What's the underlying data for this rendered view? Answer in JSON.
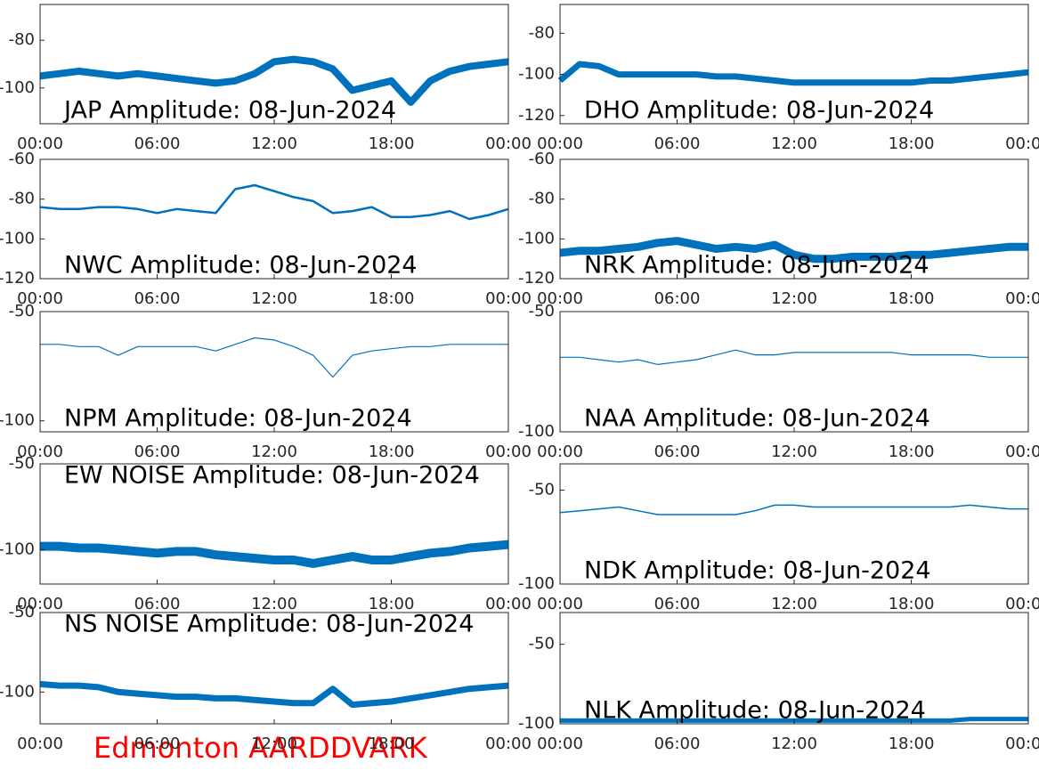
{
  "chart_data": [
    {
      "type": "line",
      "title": "JAP Amplitude: 08-Jun-2024",
      "color": "#0072bd",
      "xlim": [
        0,
        24
      ],
      "ylim": [
        -115,
        -65
      ],
      "xticks": [
        {
          "value": 0,
          "label": "00:00"
        },
        {
          "value": 6,
          "label": "06:00"
        },
        {
          "value": 12,
          "label": "12:00"
        },
        {
          "value": 18,
          "label": "18:00"
        },
        {
          "value": 24,
          "label": "00:00"
        }
      ],
      "yticks": [
        -80,
        -100
      ],
      "x": [
        0,
        1,
        2,
        3,
        4,
        5,
        6,
        7,
        8,
        9,
        10,
        11,
        12,
        13,
        14,
        15,
        16,
        17,
        18,
        19,
        20,
        21,
        22,
        23,
        24
      ],
      "values": [
        -95,
        -94,
        -93,
        -94,
        -95,
        -94,
        -95,
        -96,
        -97,
        -98,
        -97,
        -94,
        -89,
        -88,
        -89,
        -92,
        -101,
        -99,
        -97,
        -106,
        -97,
        -93,
        -91,
        -90,
        -89
      ]
    },
    {
      "type": "line",
      "title": "DHO Amplitude: 08-Jun-2024",
      "color": "#0072bd",
      "xlim": [
        0,
        24
      ],
      "ylim": [
        -124,
        -66
      ],
      "xticks": [
        {
          "value": 0,
          "label": "00:00"
        },
        {
          "value": 6,
          "label": "06:00"
        },
        {
          "value": 12,
          "label": "12:00"
        },
        {
          "value": 18,
          "label": "18:00"
        },
        {
          "value": 24,
          "label": "00:00"
        }
      ],
      "yticks": [
        -80,
        -100,
        -120
      ],
      "x": [
        0,
        1,
        2,
        3,
        4,
        5,
        6,
        7,
        8,
        9,
        10,
        11,
        12,
        13,
        14,
        15,
        16,
        17,
        18,
        19,
        20,
        21,
        22,
        23,
        24
      ],
      "values": [
        -103,
        -95,
        -96,
        -100,
        -100,
        -100,
        -100,
        -100,
        -101,
        -101,
        -102,
        -103,
        -104,
        -104,
        -104,
        -104,
        -104,
        -104,
        -104,
        -103,
        -103,
        -102,
        -101,
        -100,
        -99
      ]
    },
    {
      "type": "line",
      "title": "NWC Amplitude: 08-Jun-2024",
      "color": "#0072bd",
      "xlim": [
        0,
        24
      ],
      "ylim": [
        -120,
        -60
      ],
      "xticks": [
        {
          "value": 0,
          "label": "00:00"
        },
        {
          "value": 6,
          "label": "06:00"
        },
        {
          "value": 12,
          "label": "12:00"
        },
        {
          "value": 18,
          "label": "18:00"
        },
        {
          "value": 24,
          "label": "00:00"
        }
      ],
      "yticks": [
        -60,
        -80,
        -100,
        -120
      ],
      "x": [
        0,
        1,
        2,
        3,
        4,
        5,
        6,
        7,
        8,
        9,
        10,
        11,
        12,
        13,
        14,
        15,
        16,
        17,
        18,
        19,
        20,
        21,
        22,
        23,
        24
      ],
      "values": [
        -84,
        -85,
        -85,
        -84,
        -84,
        -85,
        -87,
        -85,
        -86,
        -87,
        -75,
        -73,
        -76,
        -79,
        -81,
        -87,
        -86,
        -84,
        -89,
        -89,
        -88,
        -86,
        -90,
        -88,
        -85
      ]
    },
    {
      "type": "line",
      "title": "NRK Amplitude: 08-Jun-2024",
      "color": "#0072bd",
      "xlim": [
        0,
        24
      ],
      "ylim": [
        -120,
        -60
      ],
      "xticks": [
        {
          "value": 0,
          "label": "00:00"
        },
        {
          "value": 6,
          "label": "06:00"
        },
        {
          "value": 12,
          "label": "12:00"
        },
        {
          "value": 18,
          "label": "18:00"
        },
        {
          "value": 24,
          "label": "00:00"
        }
      ],
      "yticks": [
        -60,
        -80,
        -100,
        -120
      ],
      "x": [
        0,
        1,
        2,
        3,
        4,
        5,
        6,
        7,
        8,
        9,
        10,
        11,
        12,
        13,
        14,
        15,
        16,
        17,
        18,
        19,
        20,
        21,
        22,
        23,
        24
      ],
      "values": [
        -107,
        -106,
        -106,
        -105,
        -104,
        -102,
        -101,
        -103,
        -105,
        -104,
        -105,
        -103,
        -108,
        -110,
        -110,
        -109,
        -109,
        -109,
        -108,
        -108,
        -107,
        -106,
        -105,
        -104,
        -104
      ]
    },
    {
      "type": "line",
      "title": "NPM Amplitude: 08-Jun-2024",
      "color": "#0072bd",
      "xlim": [
        0,
        24
      ],
      "ylim": [
        -105,
        -50
      ],
      "xticks": [
        {
          "value": 0,
          "label": "00:00"
        },
        {
          "value": 6,
          "label": "06:00"
        },
        {
          "value": 12,
          "label": "12:00"
        },
        {
          "value": 18,
          "label": "18:00"
        },
        {
          "value": 24,
          "label": "00:00"
        }
      ],
      "yticks": [
        -50,
        -100
      ],
      "x": [
        0,
        1,
        2,
        3,
        4,
        5,
        6,
        7,
        8,
        9,
        10,
        11,
        12,
        13,
        14,
        15,
        16,
        17,
        18,
        19,
        20,
        21,
        22,
        23,
        24
      ],
      "values": [
        -65,
        -65,
        -66,
        -66,
        -70,
        -66,
        -66,
        -66,
        -66,
        -68,
        -65,
        -62,
        -63,
        -66,
        -70,
        -80,
        -70,
        -68,
        -67,
        -66,
        -66,
        -65,
        -65,
        -65,
        -65
      ]
    },
    {
      "type": "line",
      "title": "NAA Amplitude: 08-Jun-2024",
      "color": "#0072bd",
      "xlim": [
        0,
        24
      ],
      "ylim": [
        -100,
        -50
      ],
      "xticks": [
        {
          "value": 0,
          "label": "00:00"
        },
        {
          "value": 6,
          "label": "06:00"
        },
        {
          "value": 12,
          "label": "12:00"
        },
        {
          "value": 18,
          "label": "18:00"
        },
        {
          "value": 24,
          "label": "00:00"
        }
      ],
      "yticks": [
        -50,
        -100
      ],
      "x": [
        0,
        1,
        2,
        3,
        4,
        5,
        6,
        7,
        8,
        9,
        10,
        11,
        12,
        13,
        14,
        15,
        16,
        17,
        18,
        19,
        20,
        21,
        22,
        23,
        24
      ],
      "values": [
        -69,
        -69,
        -70,
        -71,
        -70,
        -72,
        -71,
        -70,
        -68,
        -66,
        -68,
        -68,
        -67,
        -67,
        -67,
        -67,
        -67,
        -67,
        -68,
        -68,
        -68,
        -68,
        -69,
        -69,
        -69
      ]
    },
    {
      "type": "line",
      "title": "EW NOISE Amplitude: 08-Jun-2024",
      "color": "#0072bd",
      "xlim": [
        0,
        24
      ],
      "ylim": [
        -120,
        -50
      ],
      "xticks": [
        {
          "value": 0,
          "label": "00:00"
        },
        {
          "value": 6,
          "label": "06:00"
        },
        {
          "value": 12,
          "label": "12:00"
        },
        {
          "value": 18,
          "label": "18:00"
        },
        {
          "value": 24,
          "label": "00:00"
        }
      ],
      "yticks": [
        -50,
        -100
      ],
      "x": [
        0,
        1,
        2,
        3,
        4,
        5,
        6,
        7,
        8,
        9,
        10,
        11,
        12,
        13,
        14,
        15,
        16,
        17,
        18,
        19,
        20,
        21,
        22,
        23,
        24
      ],
      "values": [
        -98,
        -98,
        -99,
        -99,
        -100,
        -101,
        -102,
        -101,
        -101,
        -103,
        -104,
        -105,
        -106,
        -106,
        -108,
        -106,
        -104,
        -106,
        -106,
        -104,
        -102,
        -101,
        -99,
        -98,
        -97
      ]
    },
    {
      "type": "line",
      "title": "NDK Amplitude: 08-Jun-2024",
      "color": "#0072bd",
      "xlim": [
        0,
        24
      ],
      "ylim": [
        -100,
        -36
      ],
      "xticks": [
        {
          "value": 0,
          "label": "00:00"
        },
        {
          "value": 6,
          "label": "06:00"
        },
        {
          "value": 12,
          "label": "12:00"
        },
        {
          "value": 18,
          "label": "18:00"
        },
        {
          "value": 24,
          "label": "00:00"
        }
      ],
      "yticks": [
        -50,
        -100
      ],
      "x": [
        0,
        1,
        2,
        3,
        4,
        5,
        6,
        7,
        8,
        9,
        10,
        11,
        12,
        13,
        14,
        15,
        16,
        17,
        18,
        19,
        20,
        21,
        22,
        23,
        24
      ],
      "values": [
        -62,
        -61,
        -60,
        -59,
        -61,
        -63,
        -63,
        -63,
        -63,
        -63,
        -61,
        -58,
        -58,
        -59,
        -59,
        -59,
        -59,
        -59,
        -59,
        -59,
        -59,
        -58,
        -59,
        -60,
        -60
      ]
    },
    {
      "type": "line",
      "title": "NS NOISE Amplitude: 08-Jun-2024",
      "color": "#0072bd",
      "xlim": [
        0,
        24
      ],
      "ylim": [
        -120,
        -50
      ],
      "xticks": [
        {
          "value": 0,
          "label": "00:00"
        },
        {
          "value": 6,
          "label": "06:00"
        },
        {
          "value": 12,
          "label": "12:00"
        },
        {
          "value": 18,
          "label": "18:00"
        },
        {
          "value": 24,
          "label": "00:00"
        }
      ],
      "yticks": [
        -50,
        -100
      ],
      "x": [
        0,
        1,
        2,
        3,
        4,
        5,
        6,
        7,
        8,
        9,
        10,
        11,
        12,
        13,
        14,
        15,
        16,
        17,
        18,
        19,
        20,
        21,
        22,
        23,
        24
      ],
      "values": [
        -95,
        -96,
        -96,
        -97,
        -100,
        -101,
        -102,
        -103,
        -103,
        -104,
        -104,
        -105,
        -106,
        -107,
        -107,
        -98,
        -108,
        -107,
        -106,
        -104,
        -102,
        -100,
        -98,
        -97,
        -96
      ]
    },
    {
      "type": "line",
      "title": "NLK Amplitude: 08-Jun-2024",
      "color": "#0072bd",
      "xlim": [
        0,
        24
      ],
      "ylim": [
        -100,
        -30
      ],
      "xticks": [
        {
          "value": 0,
          "label": "00:00"
        },
        {
          "value": 6,
          "label": "06:00"
        },
        {
          "value": 12,
          "label": "12:00"
        },
        {
          "value": 18,
          "label": "18:00"
        },
        {
          "value": 24,
          "label": "00:00"
        }
      ],
      "yticks": [
        -50,
        -100
      ],
      "x": [
        0,
        1,
        2,
        3,
        4,
        5,
        6,
        7,
        8,
        9,
        10,
        11,
        12,
        13,
        14,
        15,
        16,
        17,
        18,
        19,
        20,
        21,
        22,
        23,
        24
      ],
      "values": [
        -98,
        -98,
        -98,
        -98,
        -98,
        -98,
        -98,
        -98,
        -98,
        -98,
        -98,
        -98,
        -98,
        -98,
        -98,
        -98,
        -98,
        -98,
        -98,
        -98,
        -98,
        -97,
        -97,
        -97,
        -97
      ]
    }
  ],
  "footer": "Edmonton AARDDVARK"
}
